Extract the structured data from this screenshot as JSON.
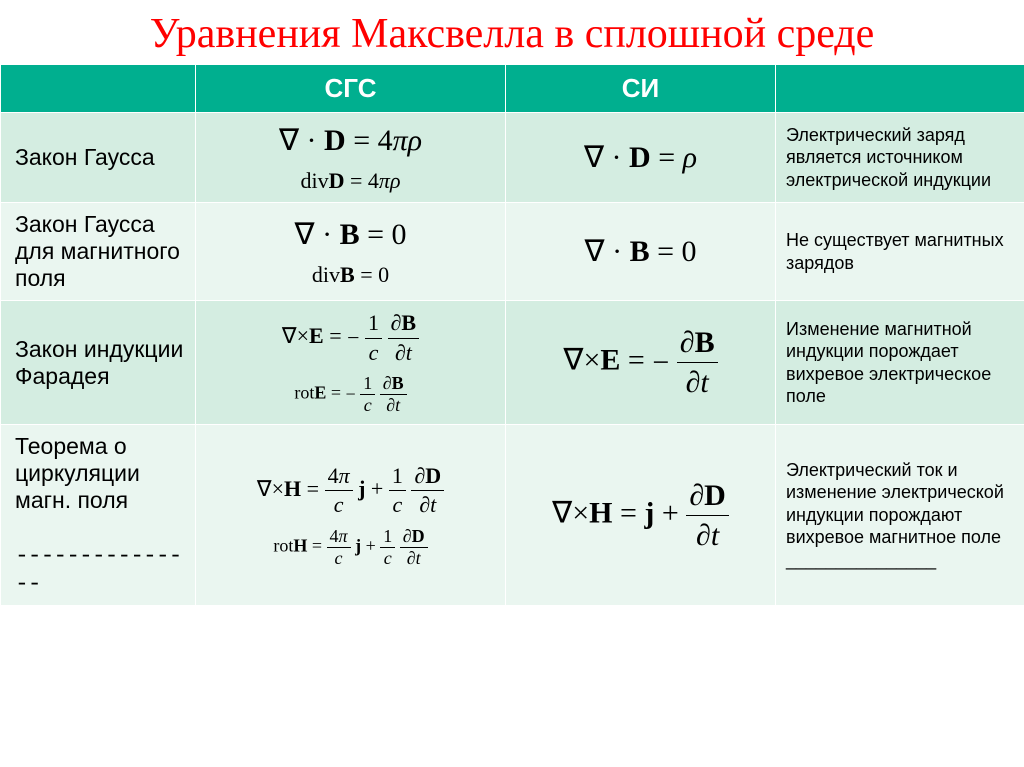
{
  "title": "Уравнения Максвелла в сплошной среде",
  "title_color": "#ff0000",
  "header_bg": "#00af8f",
  "header_fg": "#ffffff",
  "row_bg_even": "#d4ede1",
  "row_bg_odd": "#eaf6f0",
  "columns": {
    "name": "",
    "cgs": "СГС",
    "si": "СИ",
    "desc": ""
  },
  "rows": [
    {
      "name": "Закон Гаусса",
      "cgs_main": "∇ · D = 4πρ",
      "cgs_sub": "divD = 4πρ",
      "si_main": "∇ · D = ρ",
      "desc": "Электрический заряд является источником электрической индукции"
    },
    {
      "name": "Закон Гаусса для магнитного поля",
      "cgs_main": "∇ · B = 0",
      "cgs_sub": "divB = 0",
      "si_main": "∇ · B = 0",
      "desc": "Не существует магнитных зарядов"
    },
    {
      "name": "Закон индукции Фарадея",
      "cgs_main": "∇×E = −(1/c) ∂B/∂t",
      "cgs_sub": "rotE = −(1/c) ∂B/∂t",
      "si_main": "∇×E = − ∂B/∂t",
      "desc": "Изменение магнитной индукции порождает вихревое электрическое поле"
    },
    {
      "name": "Теорема о циркуляции магн. поля",
      "name_suffix": "---------------",
      "cgs_main": "∇×H = (4π/c) j + (1/c) ∂D/∂t",
      "cgs_sub": "rotH = (4π/c) j + (1/c) ∂D/∂t",
      "si_main": "∇×H = j + ∂D/∂t",
      "desc": "Электрический ток и изменение электрической индукции порождают вихревое магнитное поле",
      "desc_prefix_dashes": "_______________"
    }
  ],
  "styling": {
    "title_fontsize": 42,
    "header_fontsize": 26,
    "lawname_fontsize": 23,
    "desc_fontsize": 18,
    "eq_main_fontsize": 30,
    "eq_sub_fontsize": 22,
    "font_family_heading": "Times New Roman",
    "font_family_body": "Arial",
    "border_color": "#ffffff",
    "text_color": "#000000"
  }
}
